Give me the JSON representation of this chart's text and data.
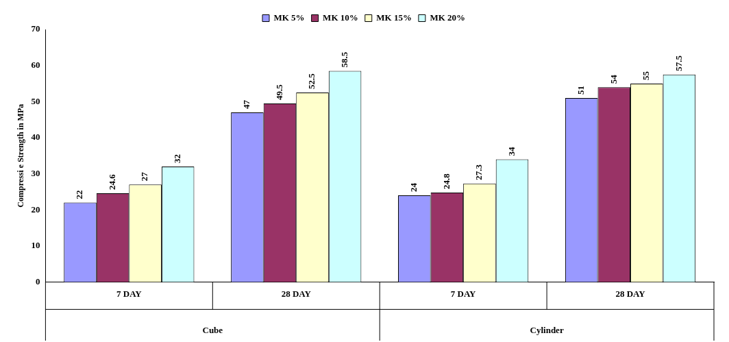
{
  "chart_data": {
    "type": "bar",
    "ylabel": "Compressi e Strength in MPa",
    "categories": [
      "7 DAY",
      "28 DAY",
      "7 DAY",
      "28 DAY"
    ],
    "series": [
      {
        "name": "MK 5%",
        "color": "#9999ff",
        "values": [
          22,
          47,
          24,
          51
        ]
      },
      {
        "name": "MK 10%",
        "color": "#993366",
        "values": [
          24.6,
          49.5,
          24.8,
          54
        ]
      },
      {
        "name": "MK 15%",
        "color": "#ffffcc",
        "values": [
          27,
          52.5,
          27.3,
          55
        ]
      },
      {
        "name": "MK 20%",
        "color": "#ccffff",
        "values": [
          32,
          58.5,
          34,
          57.5
        ]
      }
    ],
    "ylim": [
      0,
      70
    ],
    "yticks": [
      0,
      10,
      20,
      30,
      40,
      50,
      60,
      70
    ],
    "annotations": [
      "Cube",
      "Cylinder"
    ],
    "data_labels": true,
    "legend": "top",
    "grid": false
  }
}
